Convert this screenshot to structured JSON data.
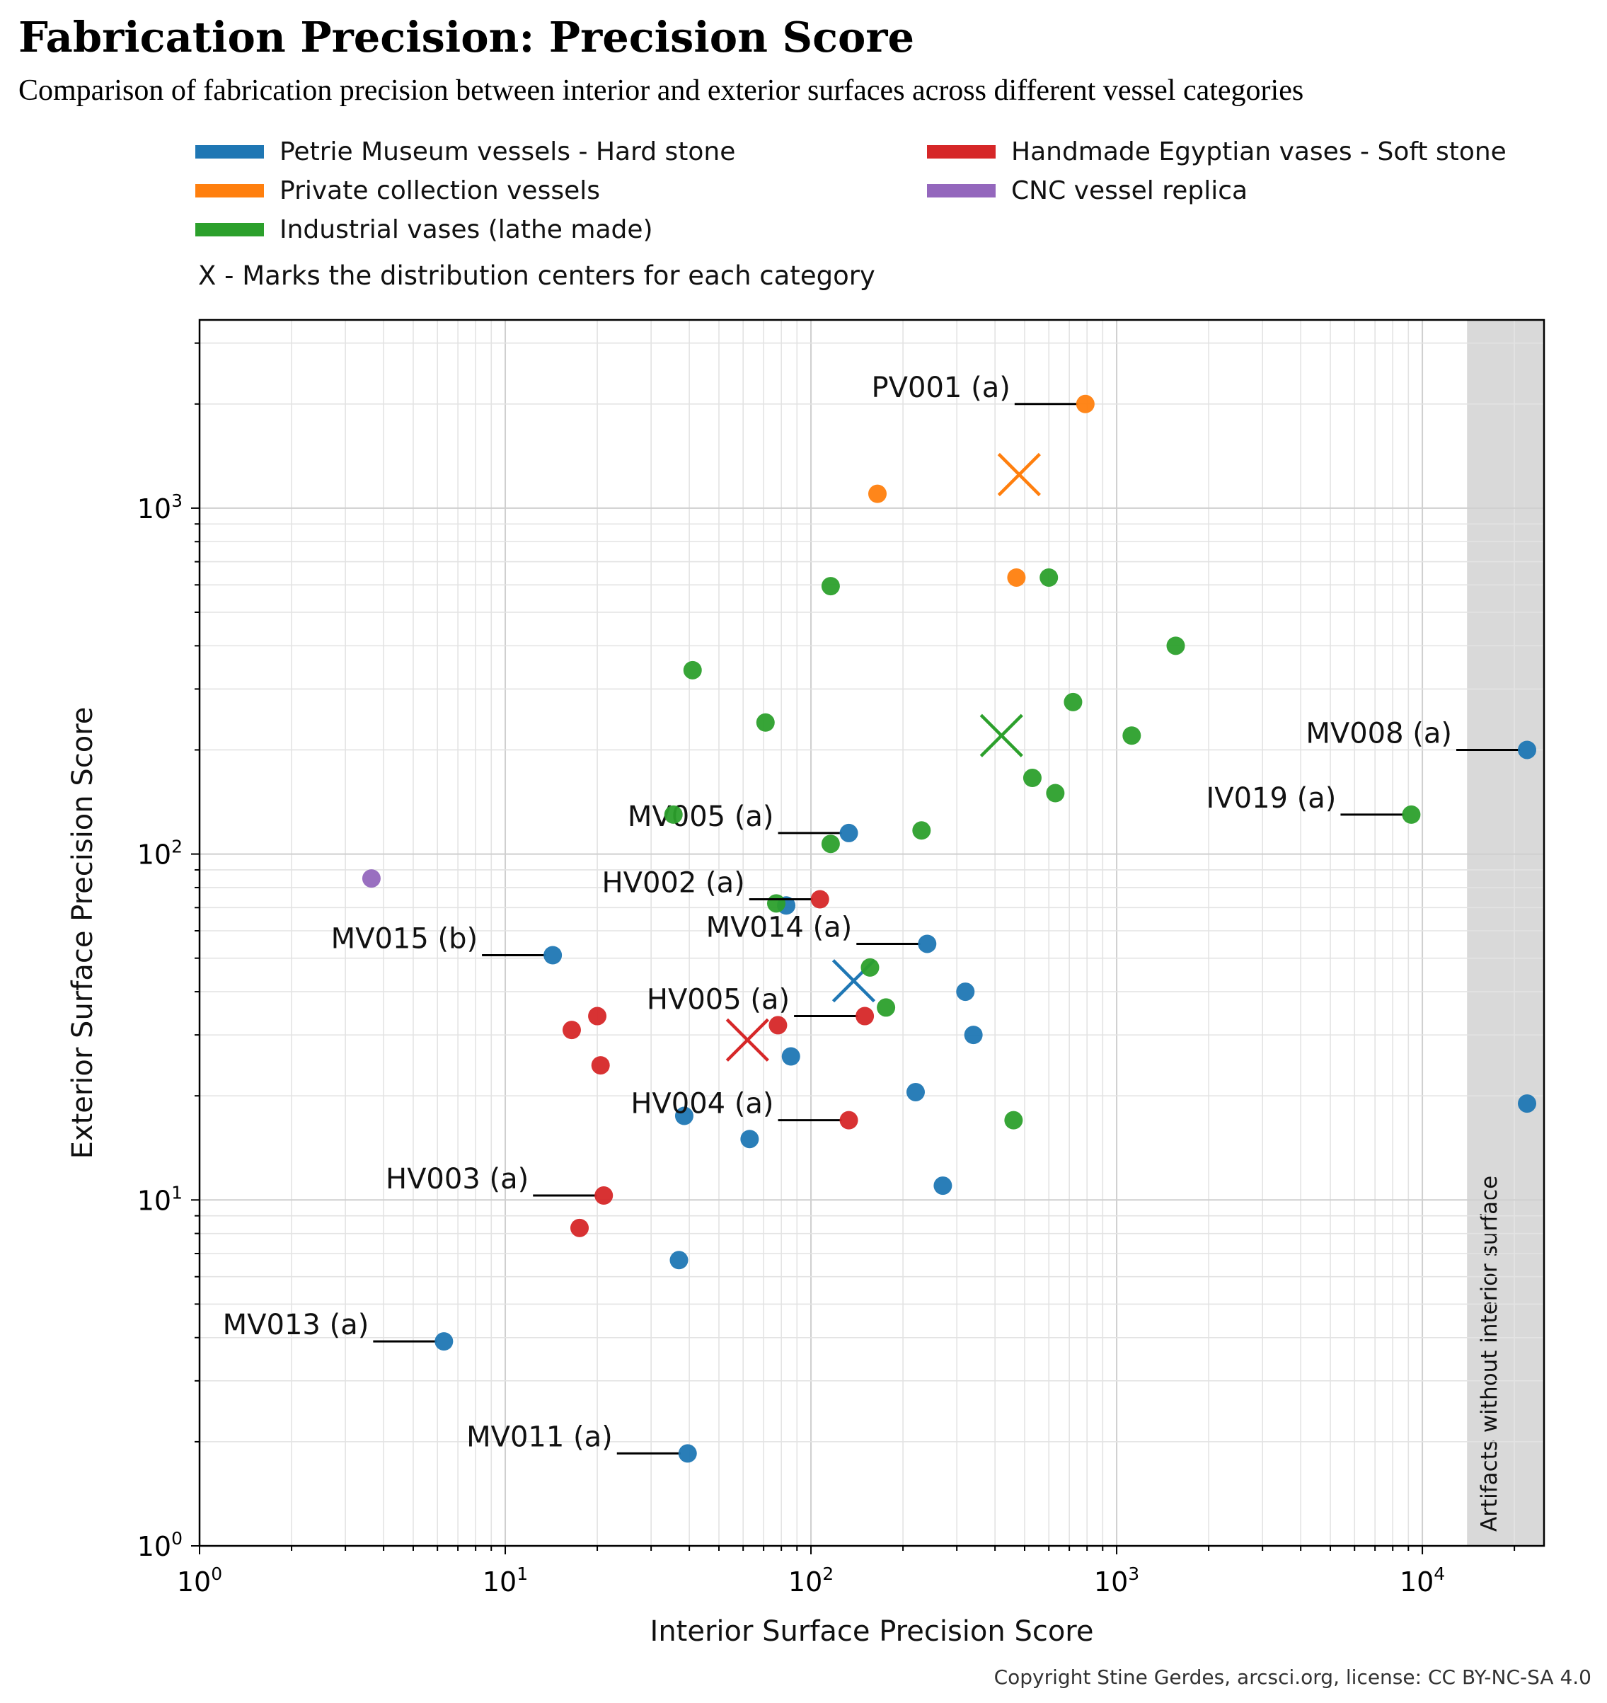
{
  "chart_data": {
    "type": "scatter",
    "title": "Fabrication Precision: Precision Score",
    "subtitle": "Comparison of fabrication precision between interior and exterior surfaces across different vessel categories",
    "xlabel": "Interior Surface Precision Score",
    "ylabel": "Exterior Surface Precision Score",
    "xscale": "log",
    "yscale": "log",
    "xlim": [
      1,
      25000
    ],
    "ylim": [
      1,
      3500
    ],
    "x_ticks": [
      {
        "base": "10",
        "exp": "0",
        "value": 1
      },
      {
        "base": "10",
        "exp": "1",
        "value": 10
      },
      {
        "base": "10",
        "exp": "2",
        "value": 100
      },
      {
        "base": "10",
        "exp": "3",
        "value": 1000
      },
      {
        "base": "10",
        "exp": "4",
        "value": 10000
      }
    ],
    "y_ticks": [
      {
        "base": "10",
        "exp": "0",
        "value": 1
      },
      {
        "base": "10",
        "exp": "1",
        "value": 10
      },
      {
        "base": "10",
        "exp": "2",
        "value": 100
      },
      {
        "base": "10",
        "exp": "3",
        "value": 1000
      }
    ],
    "grid": true,
    "legend_note": "X - Marks the distribution centers for each category",
    "no_interior_band": {
      "x_start": 14000,
      "label": "Artifacts without interior surface"
    },
    "series": [
      {
        "name": "Petrie Museum vessels - Hard stone",
        "color": "#1f77b4",
        "center": [
          138,
          43
        ],
        "points": [
          {
            "x": 133,
            "y": 115,
            "label": "MV005 (a)"
          },
          {
            "x": 83,
            "y": 71
          },
          {
            "x": 14.3,
            "y": 51,
            "label": "MV015 (b)"
          },
          {
            "x": 240,
            "y": 55,
            "label": "MV014 (a)"
          },
          {
            "x": 320,
            "y": 40
          },
          {
            "x": 340,
            "y": 30
          },
          {
            "x": 86,
            "y": 26
          },
          {
            "x": 220,
            "y": 20.5
          },
          {
            "x": 38.5,
            "y": 17.5
          },
          {
            "x": 63,
            "y": 15
          },
          {
            "x": 270,
            "y": 11
          },
          {
            "x": 37,
            "y": 6.7
          },
          {
            "x": 6.3,
            "y": 3.9,
            "label": "MV013 (a)"
          },
          {
            "x": 39.5,
            "y": 1.85,
            "label": "MV011 (a)"
          },
          {
            "x": 22000,
            "y": 200,
            "label": "MV008 (a)"
          },
          {
            "x": 22000,
            "y": 19
          }
        ]
      },
      {
        "name": "Private collection vessels",
        "color": "#ff7f0e",
        "center": [
          480,
          1250
        ],
        "points": [
          {
            "x": 790,
            "y": 2000,
            "label": "PV001 (a)"
          },
          {
            "x": 165,
            "y": 1100
          },
          {
            "x": 470,
            "y": 630
          }
        ]
      },
      {
        "name": "Industrial vases (lathe made)",
        "color": "#2ca02c",
        "center": [
          420,
          220
        ],
        "points": [
          {
            "x": 600,
            "y": 630
          },
          {
            "x": 116,
            "y": 595
          },
          {
            "x": 1560,
            "y": 400
          },
          {
            "x": 41,
            "y": 340
          },
          {
            "x": 720,
            "y": 275
          },
          {
            "x": 71,
            "y": 240
          },
          {
            "x": 1120,
            "y": 220
          },
          {
            "x": 9200,
            "y": 130,
            "label": "IV019 (a)"
          },
          {
            "x": 530,
            "y": 166
          },
          {
            "x": 630,
            "y": 150
          },
          {
            "x": 35.5,
            "y": 130
          },
          {
            "x": 230,
            "y": 117
          },
          {
            "x": 116,
            "y": 107
          },
          {
            "x": 77,
            "y": 72
          },
          {
            "x": 156,
            "y": 47
          },
          {
            "x": 176,
            "y": 36
          },
          {
            "x": 460,
            "y": 17
          }
        ]
      },
      {
        "name": "Handmade Egyptian vases - Soft stone",
        "color": "#d62728",
        "center": [
          62,
          29
        ],
        "points": [
          {
            "x": 107,
            "y": 74,
            "label": "HV002 (a)"
          },
          {
            "x": 20,
            "y": 34
          },
          {
            "x": 16.5,
            "y": 31
          },
          {
            "x": 78,
            "y": 32
          },
          {
            "x": 150,
            "y": 34,
            "label": "HV005 (a)"
          },
          {
            "x": 20.5,
            "y": 24.5
          },
          {
            "x": 133,
            "y": 17,
            "label": "HV004 (a)"
          },
          {
            "x": 21,
            "y": 10.3,
            "label": "HV003 (a)"
          },
          {
            "x": 17.5,
            "y": 8.3
          }
        ]
      },
      {
        "name": "CNC vessel replica",
        "color": "#9467bd",
        "center": null,
        "points": [
          {
            "x": 3.65,
            "y": 85
          }
        ]
      }
    ]
  },
  "copyright": "Copyright Stine Gerdes, arcsci.org, license: CC BY-NC-SA 4.0"
}
